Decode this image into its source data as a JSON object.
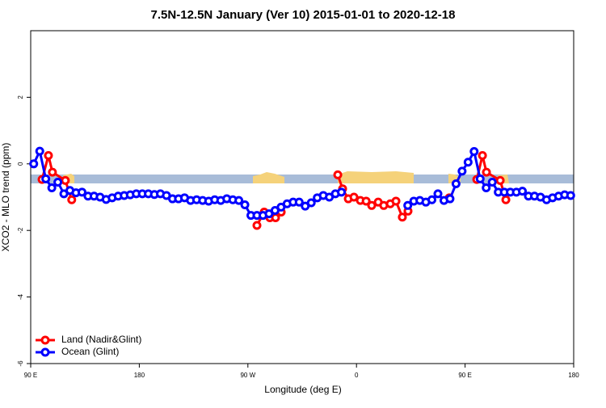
{
  "chart_data": {
    "type": "line",
    "title": "7.5N-12.5N January (Ver 10)   2015-01-01 to 2020-12-18",
    "x_label": "Longitude (deg E)",
    "y_label": "XCO2 - MLO trend (ppm)",
    "xlim": [
      90,
      540
    ],
    "ylim": [
      -6,
      4
    ],
    "xticks": [
      {
        "value": 90,
        "label": "90 E"
      },
      180,
      {
        "value": 270,
        "label": "90 W"
      },
      {
        "value": 360,
        "label": "0"
      },
      {
        "value": 450,
        "label": "90 E"
      },
      {
        "value": 540,
        "label": "180"
      }
    ],
    "yticks": [
      -6,
      -4,
      -2,
      0,
      2
    ],
    "legend": "bottomleft",
    "series": [
      {
        "name": "Land (Nadir&Glint)",
        "color": "#ff0000",
        "x": [
          99.4,
          104.7,
          108,
          118.7,
          124,
          200,
          277.5,
          283.5,
          288.2,
          292.9,
          297.6,
          320,
          344.5,
          348.5,
          353.2,
          357.9,
          363.2,
          368,
          372.6,
          378,
          382.6,
          388,
          392.7,
          398,
          402.7,
          420,
          436.9,
          440,
          459.7,
          464.4,
          467.7,
          479.1,
          483.8
        ],
        "values": [
          -0.47,
          0.25,
          -0.25,
          -0.5,
          -1.08,
          null,
          -1.85,
          -1.45,
          -1.62,
          -1.62,
          -1.45,
          null,
          -0.33,
          -0.75,
          -1.05,
          -1.0,
          -1.1,
          -1.12,
          -1.25,
          -1.15,
          -1.25,
          -1.2,
          -1.12,
          -1.6,
          -1.42,
          null,
          -1.02,
          null,
          -0.47,
          0.25,
          -0.25,
          -0.5,
          -1.08
        ]
      },
      {
        "name": "Ocean (Glint)",
        "color": "#0000ff",
        "x": [
          92.5,
          97.5,
          102.5,
          107.5,
          112.5,
          117.5,
          122.5,
          127.5,
          132.5,
          137.5,
          142.5,
          147.5,
          152.5,
          157.5,
          162.5,
          167.5,
          172.5,
          177.5,
          182.5,
          187.5,
          192.5,
          197.5,
          202.5,
          207.5,
          212.5,
          217.5,
          222.5,
          227.5,
          232.5,
          237.5,
          242.5,
          247.5,
          252.5,
          257.5,
          262.5,
          267.5,
          272.5,
          277.5,
          282.5,
          287.5,
          292.5,
          297.5,
          302.5,
          307.5,
          312.5,
          317.5,
          322.5,
          327.5,
          332.5,
          337.5,
          342.5,
          347.5,
          380,
          402.5,
          407.5,
          412.5,
          417.5,
          422.5,
          427.5,
          432.5,
          437.5,
          442.5,
          447.5,
          452.5,
          457.5,
          462.5,
          467.5,
          472.5,
          477.5,
          482.5,
          487.5,
          492.5,
          497.5,
          502.5,
          507.5,
          512.5,
          517.5,
          522.5,
          527.5,
          532.5,
          537.5
        ],
        "values": [
          0.0,
          0.38,
          -0.45,
          -0.72,
          -0.55,
          -0.9,
          -0.8,
          -0.87,
          -0.85,
          -0.97,
          -0.97,
          -1.0,
          -1.07,
          -1.02,
          -0.97,
          -0.95,
          -0.93,
          -0.9,
          -0.9,
          -0.9,
          -0.92,
          -0.9,
          -0.95,
          -1.05,
          -1.05,
          -1.02,
          -1.1,
          -1.08,
          -1.1,
          -1.12,
          -1.08,
          -1.1,
          -1.05,
          -1.08,
          -1.1,
          -1.23,
          -1.55,
          -1.55,
          -1.55,
          -1.5,
          -1.4,
          -1.3,
          -1.2,
          -1.15,
          -1.15,
          -1.27,
          -1.17,
          -1.02,
          -0.95,
          -1.0,
          -0.9,
          -0.85,
          null,
          -1.25,
          -1.12,
          -1.1,
          -1.15,
          -1.08,
          -0.9,
          -1.1,
          -1.05,
          -0.6,
          -0.22,
          0.05,
          0.37,
          -0.45,
          -0.72,
          -0.55,
          -0.85,
          -0.85,
          -0.85,
          -0.85,
          -0.82,
          -0.97,
          -0.97,
          -1.0,
          -1.08,
          -1.02,
          -0.97,
          -0.93,
          -0.95
        ]
      }
    ]
  }
}
